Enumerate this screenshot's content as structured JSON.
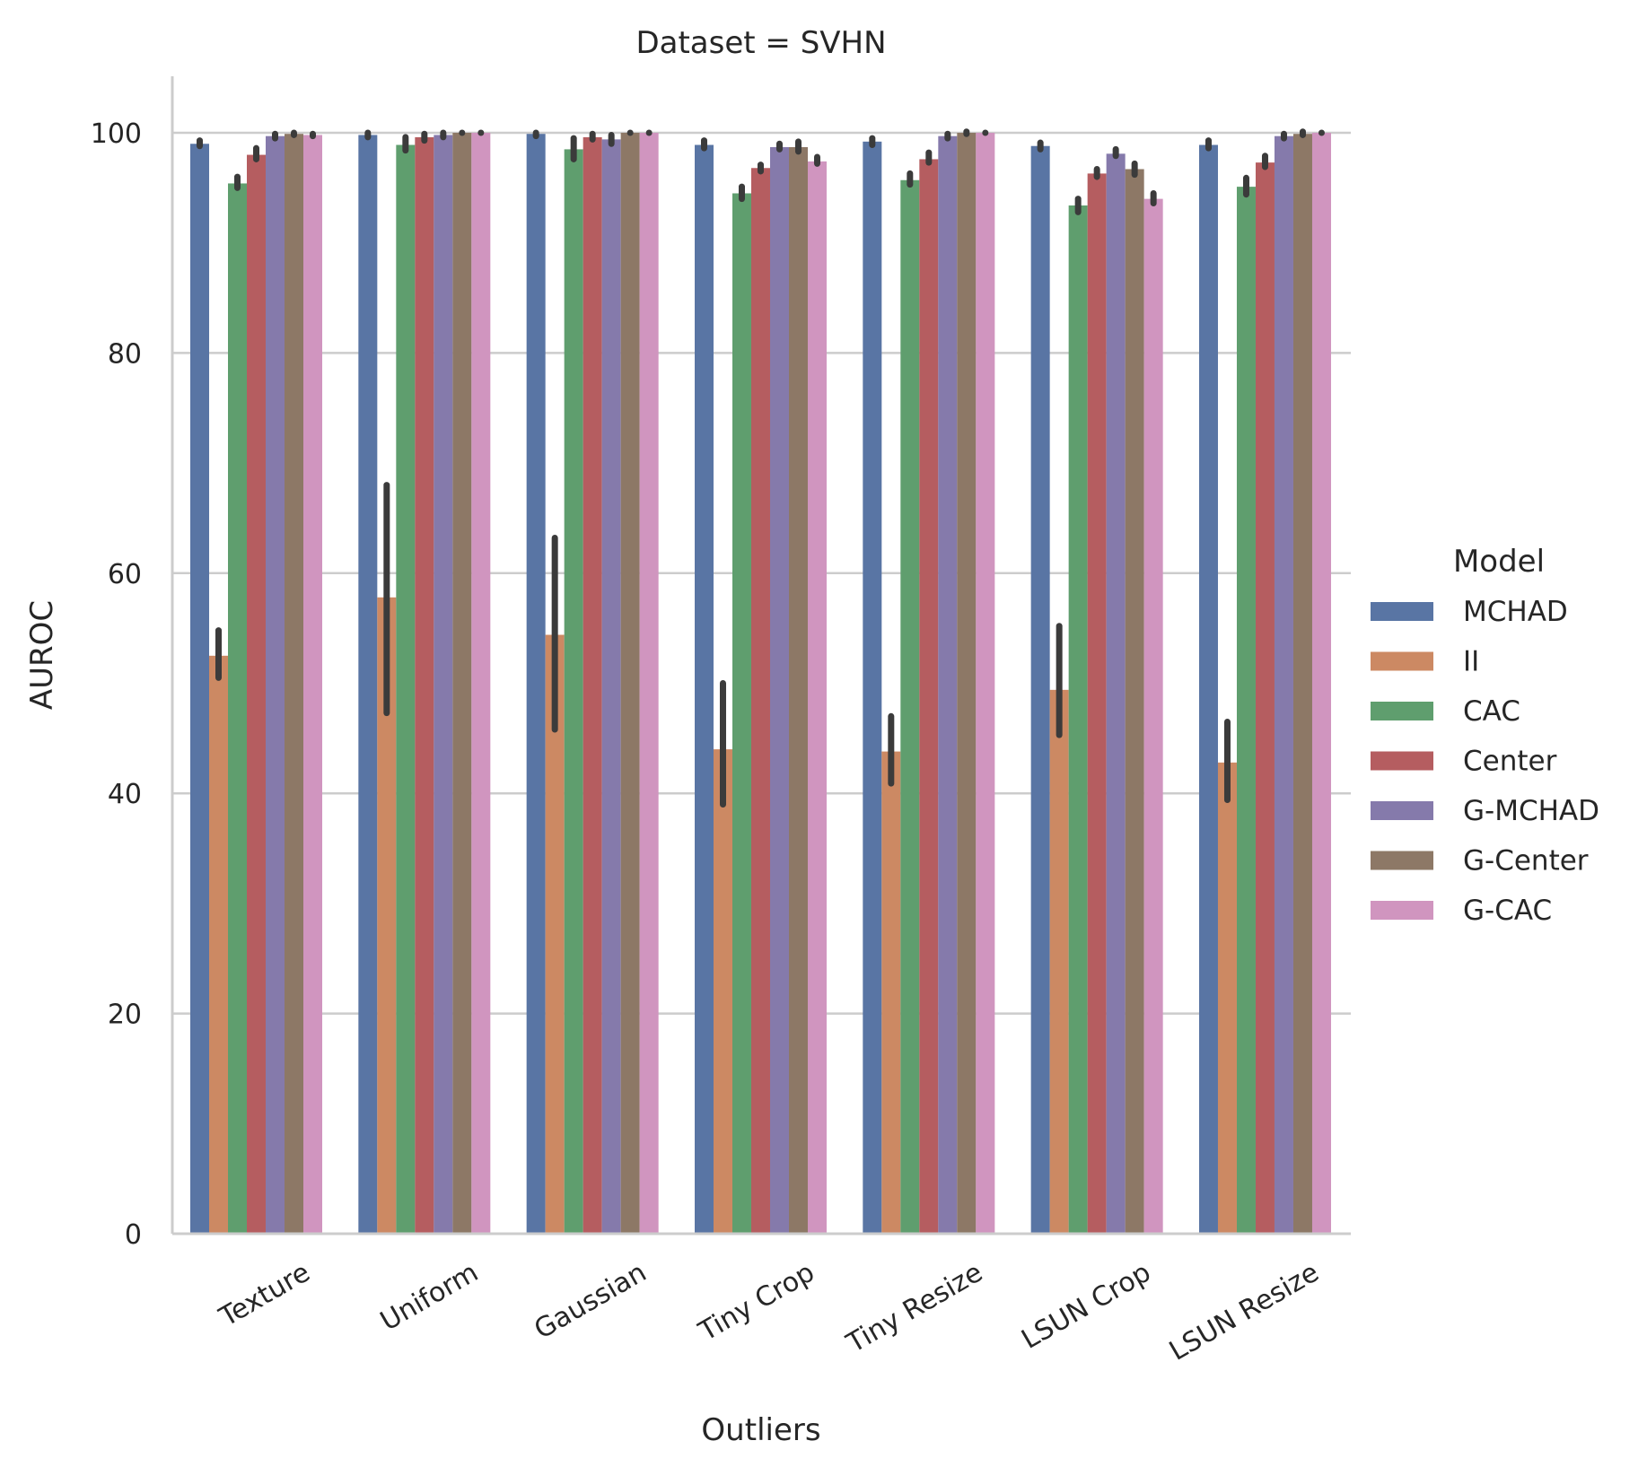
{
  "chart_data": {
    "type": "bar",
    "title": "Dataset = SVHN",
    "xlabel": "Outliers",
    "ylabel": "AUROC",
    "ylim": [
      0,
      105
    ],
    "yticks": [
      "0",
      "20",
      "40",
      "60",
      "80",
      "100"
    ],
    "grid": "y",
    "legend_title": "Model",
    "legend_placement": "right",
    "categories": [
      "Texture",
      "Uniform",
      "Gaussian",
      "Tiny Crop",
      "Tiny Resize",
      "LSUN Crop",
      "LSUN Resize"
    ],
    "series": [
      {
        "name": "MCHAD",
        "color": "#5975a4",
        "values": [
          99.0,
          99.8,
          99.9,
          98.9,
          99.2,
          98.8,
          98.9
        ],
        "err": [
          [
            98.8,
            99.3
          ],
          [
            99.6,
            100.0
          ],
          [
            99.7,
            100.0
          ],
          [
            98.6,
            99.3
          ],
          [
            98.9,
            99.5
          ],
          [
            98.5,
            99.1
          ],
          [
            98.6,
            99.3
          ]
        ]
      },
      {
        "name": "II",
        "color": "#cc8963",
        "values": [
          52.5,
          57.8,
          54.4,
          44.0,
          43.8,
          49.4,
          42.8
        ],
        "err": [
          [
            50.5,
            54.8
          ],
          [
            47.3,
            68.0
          ],
          [
            45.8,
            63.2
          ],
          [
            39.0,
            50.0
          ],
          [
            40.9,
            47.0
          ],
          [
            45.3,
            55.2
          ],
          [
            39.4,
            46.5
          ]
        ]
      },
      {
        "name": "CAC",
        "color": "#5f9e6e",
        "values": [
          95.4,
          98.9,
          98.5,
          94.5,
          95.7,
          93.4,
          95.1
        ],
        "err": [
          [
            95.0,
            96.0
          ],
          [
            98.4,
            99.6
          ],
          [
            97.6,
            99.5
          ],
          [
            94.0,
            95.1
          ],
          [
            95.3,
            96.3
          ],
          [
            92.8,
            94.0
          ],
          [
            94.4,
            95.9
          ]
        ]
      },
      {
        "name": "Center",
        "color": "#b55d60",
        "values": [
          98.0,
          99.6,
          99.6,
          96.8,
          97.6,
          96.3,
          97.3
        ],
        "err": [
          [
            97.6,
            98.6
          ],
          [
            99.3,
            99.9
          ],
          [
            99.4,
            99.9
          ],
          [
            96.5,
            97.1
          ],
          [
            97.3,
            98.2
          ],
          [
            96.0,
            96.7
          ],
          [
            96.9,
            97.9
          ]
        ]
      },
      {
        "name": "G-MCHAD",
        "color": "#857aab",
        "values": [
          99.7,
          99.8,
          99.4,
          98.7,
          99.7,
          98.1,
          99.7
        ],
        "err": [
          [
            99.5,
            99.9
          ],
          [
            99.6,
            100.0
          ],
          [
            99.0,
            99.8
          ],
          [
            98.5,
            99.0
          ],
          [
            99.5,
            99.9
          ],
          [
            97.9,
            98.5
          ],
          [
            99.5,
            99.9
          ]
        ]
      },
      {
        "name": "G-Center",
        "color": "#8d7866",
        "values": [
          99.9,
          100.0,
          100.0,
          98.7,
          100.0,
          96.7,
          99.9
        ],
        "err": [
          [
            99.8,
            100.0
          ],
          [
            100.0,
            100.0
          ],
          [
            100.0,
            100.0
          ],
          [
            98.3,
            99.2
          ],
          [
            99.9,
            100.1
          ],
          [
            96.2,
            97.2
          ],
          [
            99.8,
            100.1
          ]
        ]
      },
      {
        "name": "G-CAC",
        "color": "#d095bf",
        "values": [
          99.8,
          100.0,
          100.0,
          97.4,
          100.0,
          94.0,
          100.0
        ],
        "err": [
          [
            99.7,
            99.9
          ],
          [
            100.0,
            100.0
          ],
          [
            100.0,
            100.0
          ],
          [
            97.2,
            97.8
          ],
          [
            100.0,
            100.0
          ],
          [
            93.6,
            94.5
          ],
          [
            100.0,
            100.0
          ]
        ]
      }
    ]
  }
}
